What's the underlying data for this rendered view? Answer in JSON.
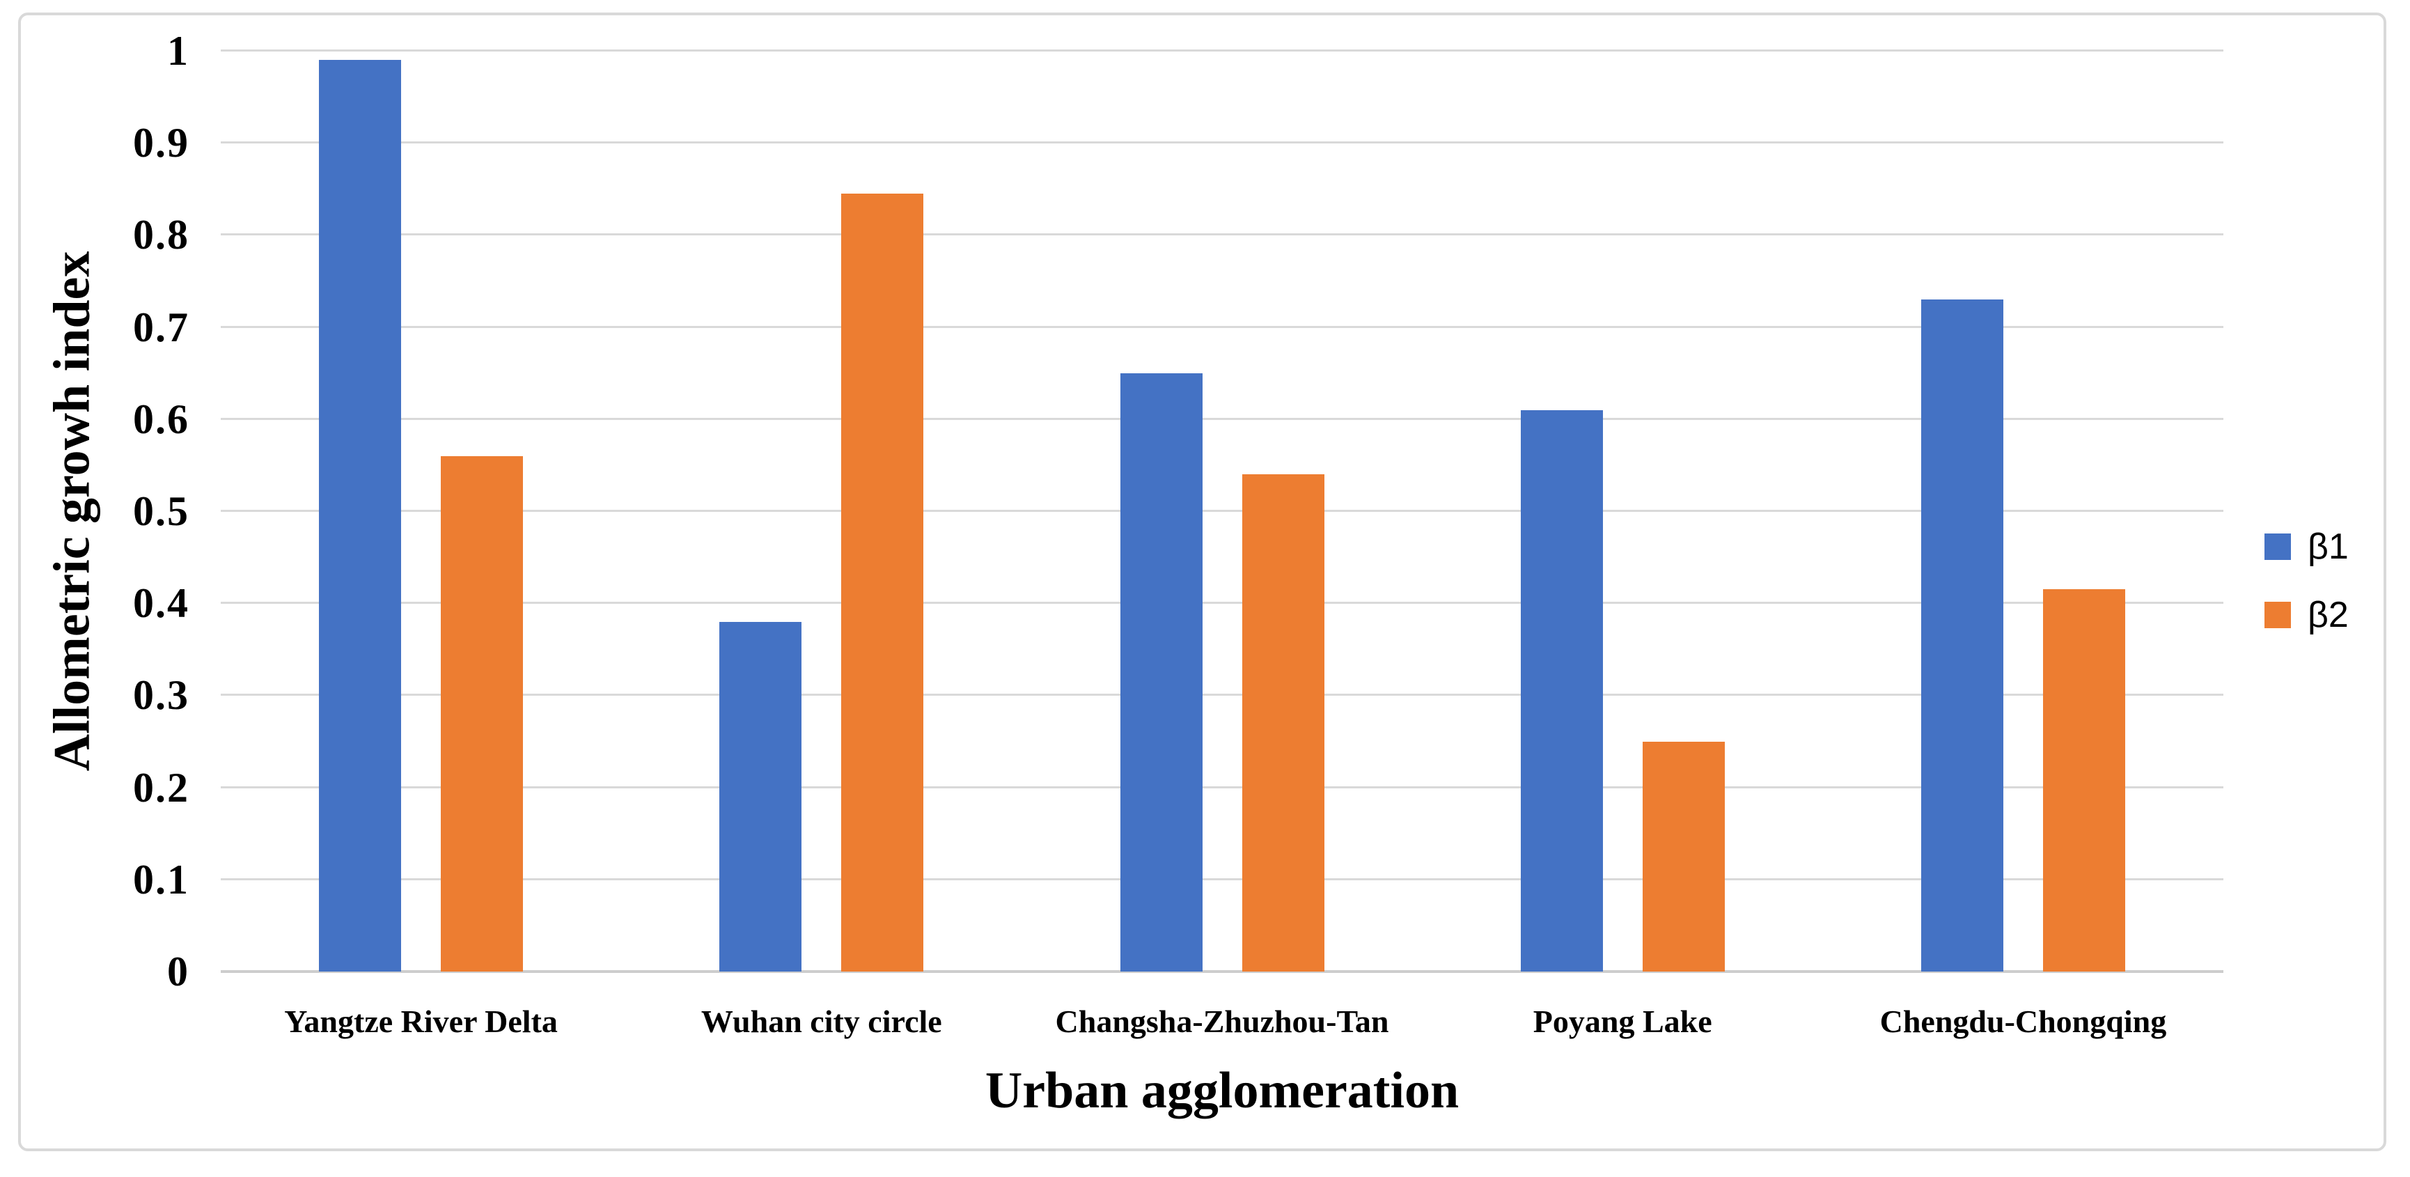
{
  "chart_data": {
    "type": "bar",
    "title": "",
    "categories": [
      "Yangtze River Delta",
      "Wuhan city circle",
      "Changsha-Zhuzhou-Tan",
      "Poyang Lake",
      "Chengdu-Chongqing"
    ],
    "series": [
      {
        "name": "β1",
        "color": "#4472C4",
        "values": [
          0.99,
          0.38,
          0.65,
          0.61,
          0.73
        ]
      },
      {
        "name": "β2",
        "color": "#ED7D31",
        "values": [
          0.56,
          0.845,
          0.54,
          0.25,
          0.415
        ]
      }
    ],
    "xlabel": "Urban agglomeration",
    "ylabel": "Allometric growh index",
    "ylim": [
      0,
      1
    ],
    "y_ticks": [
      "0",
      "0.1",
      "0.2",
      "0.3",
      "0.4",
      "0.5",
      "0.6",
      "0.7",
      "0.8",
      "0.9",
      "1"
    ],
    "grid": "horizontal",
    "legend_position": "right",
    "colors": {
      "gridline": "#d9d9d9",
      "axis_line": "#cdcdcd",
      "chart_border": "#d9d9d9",
      "text": "#000000"
    }
  }
}
